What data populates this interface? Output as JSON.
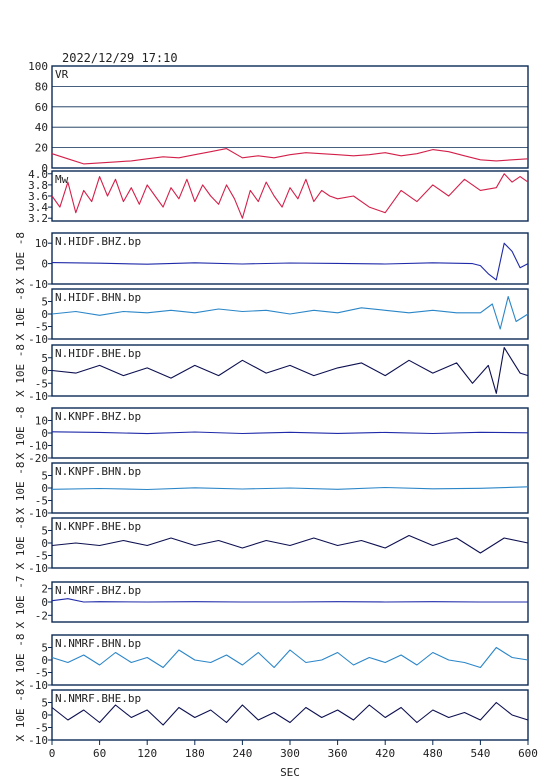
{
  "header": {
    "timestamp": "2022/12/29  17:10"
  },
  "colors": {
    "vr": "#d3204a",
    "mw": "#d3204a",
    "bhz": "#1f2aa8",
    "bhn": "#2b86c8",
    "bhe": "#0d1050",
    "frame": "#0a2a55"
  },
  "chart_data": [
    {
      "type": "line",
      "panel_label": "VR",
      "ylim": [
        0,
        100
      ],
      "yticks": [
        0,
        20,
        40,
        60,
        80,
        100
      ],
      "grid": true,
      "series": [
        {
          "x": [
            0,
            20,
            40,
            60,
            80,
            100,
            120,
            140,
            160,
            180,
            200,
            220,
            240,
            260,
            280,
            300,
            320,
            340,
            360,
            380,
            400,
            420,
            440,
            460,
            480,
            500,
            520,
            540,
            560,
            580,
            600
          ],
          "values": [
            14,
            9,
            4,
            5,
            6,
            7,
            9,
            11,
            10,
            13,
            16,
            19,
            10,
            12,
            10,
            13,
            15,
            14,
            13,
            12,
            13,
            15,
            12,
            14,
            18,
            16,
            12,
            8,
            7,
            8,
            9
          ]
        }
      ]
    },
    {
      "type": "line",
      "panel_label": "Mw",
      "ylim": [
        3.15,
        4.05
      ],
      "yticks": [
        "4.0",
        "3.8",
        "3.6",
        "3.4",
        "3.2"
      ],
      "ytick_values": [
        4.0,
        3.8,
        3.6,
        3.4,
        3.2
      ],
      "grid": false,
      "series": [
        {
          "x": [
            0,
            10,
            20,
            30,
            40,
            50,
            60,
            70,
            80,
            90,
            100,
            110,
            120,
            130,
            140,
            150,
            160,
            170,
            180,
            190,
            200,
            210,
            220,
            230,
            240,
            250,
            260,
            270,
            280,
            290,
            300,
            310,
            320,
            330,
            340,
            350,
            360,
            380,
            400,
            420,
            440,
            460,
            480,
            500,
            520,
            540,
            560,
            570,
            580,
            590,
            600
          ],
          "values": [
            3.6,
            3.4,
            3.85,
            3.3,
            3.7,
            3.5,
            3.95,
            3.6,
            3.9,
            3.5,
            3.75,
            3.45,
            3.8,
            3.6,
            3.4,
            3.75,
            3.55,
            3.9,
            3.5,
            3.8,
            3.6,
            3.45,
            3.8,
            3.55,
            3.2,
            3.7,
            3.5,
            3.85,
            3.6,
            3.4,
            3.75,
            3.55,
            3.9,
            3.5,
            3.7,
            3.6,
            3.55,
            3.6,
            3.4,
            3.3,
            3.7,
            3.5,
            3.8,
            3.6,
            3.9,
            3.7,
            3.75,
            4.0,
            3.85,
            3.95,
            3.85
          ]
        }
      ]
    },
    {
      "type": "line",
      "panel_label": "N.HIDF.BHZ.bp",
      "ylabel": "X 10E -8",
      "ylim": [
        -10,
        15
      ],
      "yticks": [
        10,
        0,
        -10
      ],
      "series": [
        {
          "x": [
            0,
            60,
            120,
            180,
            240,
            300,
            360,
            420,
            480,
            530,
            540,
            550,
            560,
            570,
            580,
            590,
            600
          ],
          "values": [
            0.5,
            0.2,
            -0.3,
            0.4,
            -0.2,
            0.3,
            0.1,
            -0.2,
            0.4,
            0,
            -1,
            -5,
            -8,
            10,
            6,
            -2,
            0
          ]
        }
      ]
    },
    {
      "type": "line",
      "panel_label": "N.HIDF.BHN.bp",
      "ylabel": "X 10E -8",
      "ylim": [
        -10,
        10
      ],
      "yticks": [
        5,
        0,
        -5,
        -10
      ],
      "series": [
        {
          "x": [
            0,
            30,
            60,
            90,
            120,
            150,
            180,
            210,
            240,
            270,
            300,
            330,
            360,
            390,
            420,
            450,
            480,
            510,
            540,
            555,
            565,
            575,
            585,
            600
          ],
          "values": [
            0,
            1,
            -0.5,
            1,
            0.5,
            1.5,
            0.5,
            2,
            1,
            1.5,
            0,
            1.5,
            0.5,
            2.5,
            1.5,
            0.5,
            1.5,
            0.5,
            0.5,
            4,
            -6,
            7,
            -3,
            0
          ]
        }
      ]
    },
    {
      "type": "line",
      "panel_label": "N.HIDF.BHE.bp",
      "ylabel": "X 10E -8",
      "ylim": [
        -10,
        10
      ],
      "yticks": [
        5,
        0,
        -5,
        -10
      ],
      "series": [
        {
          "x": [
            0,
            30,
            60,
            90,
            120,
            150,
            180,
            210,
            240,
            270,
            300,
            330,
            360,
            390,
            420,
            450,
            480,
            510,
            530,
            550,
            560,
            570,
            580,
            590,
            600
          ],
          "values": [
            0,
            -1,
            2,
            -2,
            1,
            -3,
            2,
            -2,
            4,
            -1,
            2,
            -2,
            1,
            3,
            -2,
            4,
            -1,
            3,
            -5,
            2,
            -9,
            9,
            4,
            -1,
            -2
          ]
        }
      ]
    },
    {
      "type": "line",
      "panel_label": "N.KNPF.BHZ.bp",
      "ylabel": "X 10E -8",
      "ylim": [
        -20,
        20
      ],
      "yticks": [
        10,
        0,
        -10,
        -20
      ],
      "series": [
        {
          "x": [
            0,
            60,
            120,
            180,
            240,
            300,
            360,
            420,
            480,
            540,
            600
          ],
          "values": [
            1,
            0.5,
            -0.5,
            0.8,
            -0.4,
            0.6,
            -0.3,
            0.5,
            -0.4,
            0.6,
            0.2
          ]
        }
      ]
    },
    {
      "type": "line",
      "panel_label": "N.KNPF.BHN.bp",
      "ylabel": "X 10E -8",
      "ylim": [
        -10,
        10
      ],
      "yticks": [
        5,
        0,
        -5,
        -10
      ],
      "series": [
        {
          "x": [
            0,
            60,
            120,
            180,
            240,
            300,
            360,
            420,
            480,
            540,
            600
          ],
          "values": [
            -0.5,
            -0.2,
            -0.6,
            0.1,
            -0.4,
            0,
            -0.5,
            0.2,
            -0.3,
            -0.1,
            0.5
          ]
        }
      ]
    },
    {
      "type": "line",
      "panel_label": "N.KNPF.BHE.bp",
      "ylabel": "X 10E -8",
      "ylim": [
        -10,
        10
      ],
      "yticks": [
        5,
        0,
        -5,
        -10
      ],
      "series": [
        {
          "x": [
            0,
            30,
            60,
            90,
            120,
            150,
            180,
            210,
            240,
            270,
            300,
            330,
            360,
            390,
            420,
            450,
            480,
            510,
            540,
            570,
            600
          ],
          "values": [
            -1,
            0,
            -1,
            1,
            -1,
            2,
            -1,
            1,
            -2,
            1,
            -1,
            2,
            -1,
            1,
            -2,
            3,
            -1,
            2,
            -4,
            2,
            0
          ]
        }
      ]
    },
    {
      "type": "line",
      "panel_label": "N.NMRF.BHZ.bp",
      "ylabel": "X 10E -7",
      "ylim": [
        -3,
        3
      ],
      "yticks": [
        2,
        0,
        -2
      ],
      "series": [
        {
          "x": [
            0,
            20,
            40,
            60,
            120,
            180,
            240,
            300,
            360,
            420,
            480,
            540,
            600
          ],
          "values": [
            0.2,
            0.5,
            0,
            0.05,
            0,
            0.05,
            0,
            0,
            0.05,
            0,
            0.05,
            0,
            0
          ]
        }
      ]
    },
    {
      "type": "line",
      "panel_label": "N.NMRF.BHN.bp",
      "ylabel": "X 10E -8",
      "ylim": [
        -10,
        10
      ],
      "yticks": [
        5,
        0,
        -5,
        -10
      ],
      "series": [
        {
          "x": [
            0,
            20,
            40,
            60,
            80,
            100,
            120,
            140,
            160,
            180,
            200,
            220,
            240,
            260,
            280,
            300,
            320,
            340,
            360,
            380,
            400,
            420,
            440,
            460,
            480,
            500,
            520,
            540,
            560,
            580,
            600
          ],
          "values": [
            1,
            -1,
            2,
            -2,
            3,
            -1,
            1,
            -3,
            4,
            0,
            -1,
            2,
            -2,
            3,
            -3,
            4,
            -1,
            0,
            3,
            -2,
            1,
            -1,
            2,
            -2,
            3,
            0,
            -1,
            -3,
            5,
            1,
            0
          ]
        }
      ]
    },
    {
      "type": "line",
      "panel_label": "N.NMRF.BHE.bp",
      "ylabel": "X 10E -8",
      "ylim": [
        -10,
        10
      ],
      "yticks": [
        5,
        0,
        -5,
        -10
      ],
      "xlabel": "SEC",
      "xlim": [
        0,
        600
      ],
      "xticks": [
        0,
        60,
        120,
        180,
        240,
        300,
        360,
        420,
        480,
        540,
        600
      ],
      "series": [
        {
          "x": [
            0,
            20,
            40,
            60,
            80,
            100,
            120,
            140,
            160,
            180,
            200,
            220,
            240,
            260,
            280,
            300,
            320,
            340,
            360,
            380,
            400,
            420,
            440,
            460,
            480,
            500,
            520,
            540,
            560,
            580,
            600
          ],
          "values": [
            3,
            -2,
            2,
            -3,
            4,
            -1,
            2,
            -4,
            3,
            -1,
            2,
            -3,
            4,
            -2,
            1,
            -3,
            3,
            -1,
            2,
            -2,
            4,
            -1,
            3,
            -3,
            2,
            -1,
            1,
            -2,
            5,
            0,
            -2
          ]
        }
      ]
    }
  ]
}
